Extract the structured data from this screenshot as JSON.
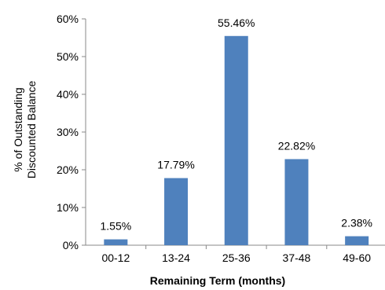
{
  "chart_data": {
    "type": "bar",
    "title": "",
    "categories": [
      "00-12",
      "13-24",
      "25-36",
      "37-48",
      "49-60"
    ],
    "values": [
      1.55,
      17.79,
      55.46,
      22.82,
      2.38
    ],
    "data_labels": [
      "1.55%",
      "17.79%",
      "55.46%",
      "22.82%",
      "2.38%"
    ],
    "xlabel": "Remaining Term (months)",
    "ylabel_lines": [
      "% of Outstanding",
      "Discounted Balance"
    ],
    "ylim": [
      0,
      60
    ],
    "y_ticks": [
      0,
      10,
      20,
      30,
      40,
      50,
      60
    ],
    "y_tick_labels": [
      "0%",
      "10%",
      "20%",
      "30%",
      "40%",
      "50%",
      "60%"
    ],
    "grid": false,
    "legend": "none",
    "bar_color": "#4F81BD"
  }
}
